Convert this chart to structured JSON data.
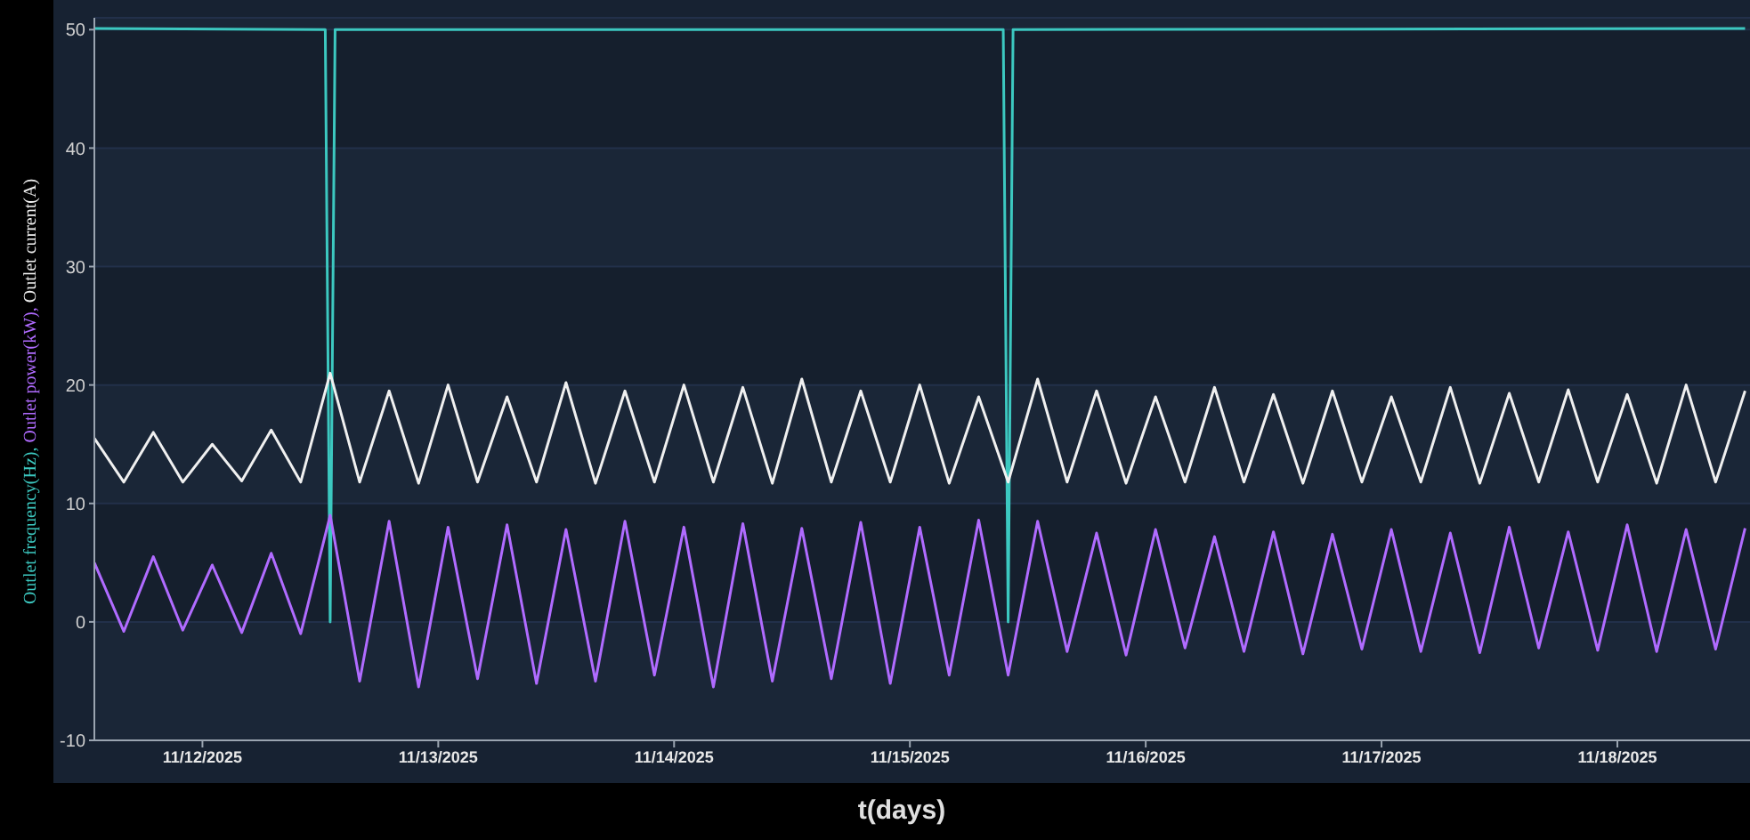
{
  "chart_data": {
    "type": "line",
    "ylabel": "Outlet frequency(Hz), Outlet power(kW), Outlet current(A)",
    "xlabel": "t(days)",
    "x": [
      "2025-11-11T13:00",
      "2025-11-11T16:00",
      "2025-11-11T19:00",
      "2025-11-11T22:00",
      "2025-11-12T01:00",
      "2025-11-12T04:00",
      "2025-11-12T07:00",
      "2025-11-12T10:00",
      "2025-11-12T13:00",
      "2025-11-12T16:00",
      "2025-11-12T19:00",
      "2025-11-12T22:00",
      "2025-11-13T01:00",
      "2025-11-13T04:00",
      "2025-11-13T07:00",
      "2025-11-13T10:00",
      "2025-11-13T13:00",
      "2025-11-13T16:00",
      "2025-11-13T19:00",
      "2025-11-13T22:00",
      "2025-11-14T01:00",
      "2025-11-14T04:00",
      "2025-11-14T07:00",
      "2025-11-14T10:00",
      "2025-11-14T13:00",
      "2025-11-14T16:00",
      "2025-11-14T19:00",
      "2025-11-14T22:00",
      "2025-11-15T01:00",
      "2025-11-15T04:00",
      "2025-11-15T07:00",
      "2025-11-15T10:00",
      "2025-11-15T13:00",
      "2025-11-15T16:00",
      "2025-11-15T19:00",
      "2025-11-15T22:00",
      "2025-11-16T01:00",
      "2025-11-16T04:00",
      "2025-11-16T07:00",
      "2025-11-16T10:00",
      "2025-11-16T13:00",
      "2025-11-16T16:00",
      "2025-11-16T19:00",
      "2025-11-16T22:00",
      "2025-11-17T01:00",
      "2025-11-17T04:00",
      "2025-11-17T07:00",
      "2025-11-17T10:00",
      "2025-11-17T13:00",
      "2025-11-17T16:00",
      "2025-11-17T19:00",
      "2025-11-17T22:00",
      "2025-11-18T01:00",
      "2025-11-18T04:00",
      "2025-11-18T07:00",
      "2025-11-18T10:00",
      "2025-11-18T13:00"
    ],
    "series": [
      {
        "color": "#3cc8c0",
        "x": [
          "2025-11-11T13:00",
          "2025-11-12T12:30",
          "2025-11-12T13:00",
          "2025-11-12T13:30",
          "2025-11-15T09:30",
          "2025-11-15T10:00",
          "2025-11-15T10:30",
          "2025-11-18T13:00"
        ],
        "values": [
          50.1,
          50,
          0,
          50,
          50,
          0,
          50,
          50.1
        ]
      },
      {
        "color": "#b06bff",
        "values": [
          5,
          -0.8,
          5.5,
          -0.7,
          4.8,
          -0.9,
          5.8,
          -1,
          9,
          -5,
          8.5,
          -5.5,
          8,
          -4.8,
          8.2,
          -5.2,
          7.8,
          -5,
          8.5,
          -4.5,
          8,
          -5.5,
          8.3,
          -5,
          7.9,
          -4.8,
          8.4,
          -5.2,
          8,
          -4.5,
          8.6,
          -4.5,
          8.5,
          -2.5,
          7.5,
          -2.8,
          7.8,
          -2.2,
          7.2,
          -2.5,
          7.6,
          -2.7,
          7.4,
          -2.3,
          7.8,
          -2.5,
          7.5,
          -2.6,
          8,
          -2.2,
          7.6,
          -2.4,
          8.2,
          -2.5,
          7.8,
          -2.3,
          7.9
        ]
      },
      {
        "color": "#f0f0f0",
        "values": [
          15.5,
          11.8,
          16,
          11.8,
          15,
          11.9,
          16.2,
          11.8,
          21,
          11.8,
          19.5,
          11.7,
          20,
          11.8,
          19,
          11.8,
          20.2,
          11.7,
          19.5,
          11.8,
          20,
          11.8,
          19.8,
          11.7,
          20.5,
          11.8,
          19.5,
          11.8,
          20,
          11.7,
          19,
          11.8,
          20.5,
          11.8,
          19.5,
          11.7,
          19,
          11.8,
          19.8,
          11.8,
          19.2,
          11.7,
          19.5,
          11.8,
          19,
          11.8,
          19.8,
          11.7,
          19.3,
          11.8,
          19.6,
          11.8,
          19.2,
          11.7,
          20,
          11.8,
          19.5
        ]
      }
    ],
    "xlim": [
      "2025-11-11T13:00",
      "2025-11-18T13:30"
    ],
    "xticks": [
      {
        "value": "2025-11-12",
        "label": "11/12/2025"
      },
      {
        "value": "2025-11-13",
        "label": "11/13/2025"
      },
      {
        "value": "2025-11-14",
        "label": "11/14/2025"
      },
      {
        "value": "2025-11-15",
        "label": "11/15/2025"
      },
      {
        "value": "2025-11-16",
        "label": "11/16/2025"
      },
      {
        "value": "2025-11-17",
        "label": "11/17/2025"
      },
      {
        "value": "2025-11-18",
        "label": "11/18/2025"
      }
    ],
    "ylim": [
      -10,
      51
    ],
    "yticks": [
      -10,
      0,
      10,
      20,
      30,
      40,
      50
    ],
    "grid": "y",
    "marker": "none",
    "line_style": "solid"
  }
}
